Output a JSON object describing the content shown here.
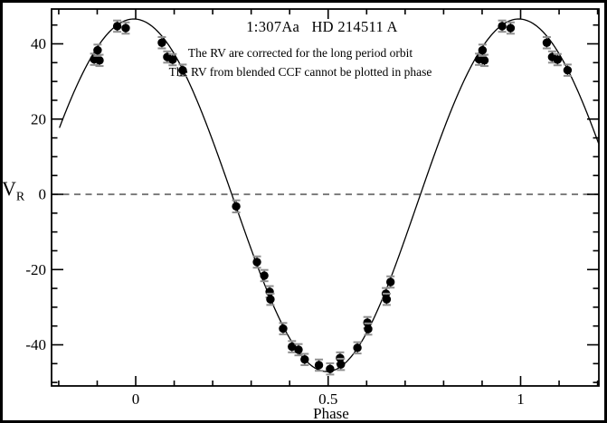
{
  "chart_data": {
    "type": "scatter",
    "title": "1:307Aa   HD 214511 A",
    "annotations": [
      "The RV are corrected for the long period orbit",
      "The RV from blended CCF cannot be plotted in phase"
    ],
    "xlabel": "Phase",
    "ylabel": "V_R",
    "ylabel_main": "V",
    "ylabel_sub": "R",
    "xlim": [
      -0.2186,
      1.2033
    ],
    "ylim": [
      -50.93,
      49.25
    ],
    "x_major_ticks": [
      0,
      0.5,
      1
    ],
    "x_major_tick_labels": [
      "0",
      "0.5",
      "1"
    ],
    "x_minor_tick_step": 0.1,
    "y_major_ticks": [
      -40,
      -20,
      0,
      20,
      40
    ],
    "y_major_tick_labels": [
      "-40",
      "-20",
      "0",
      "20",
      "40"
    ],
    "y_minor_tick_step": 5,
    "grid": "off",
    "legend": "none",
    "zero_line": {
      "value": 0,
      "style": "dashed"
    },
    "points_format": [
      "phase",
      "rv_km_s",
      "error"
    ],
    "points": [
      [
        -0.108,
        35.9,
        1.5
      ],
      [
        -0.094,
        35.6,
        1.5
      ],
      [
        -0.099,
        38.3,
        1.5
      ],
      [
        -0.048,
        44.7,
        1.5
      ],
      [
        -0.026,
        44.2,
        1.5
      ],
      [
        0.068,
        40.3,
        1.5
      ],
      [
        0.082,
        36.5,
        1.5
      ],
      [
        0.096,
        35.8,
        1.5
      ],
      [
        0.122,
        33.0,
        1.5
      ],
      [
        0.261,
        -3.2,
        1.6
      ],
      [
        0.315,
        -18.0,
        1.5
      ],
      [
        0.334,
        -21.6,
        1.5
      ],
      [
        0.348,
        -25.9,
        1.5
      ],
      [
        0.35,
        -27.9,
        1.5
      ],
      [
        0.383,
        -35.7,
        1.5
      ],
      [
        0.406,
        -40.5,
        1.5
      ],
      [
        0.423,
        -41.3,
        1.5
      ],
      [
        0.439,
        -43.9,
        1.5
      ],
      [
        0.476,
        -45.4,
        1.5
      ],
      [
        0.505,
        -46.4,
        1.5
      ],
      [
        0.531,
        -43.5,
        1.5
      ],
      [
        0.533,
        -45.2,
        1.5
      ],
      [
        0.576,
        -40.8,
        1.5
      ],
      [
        0.602,
        -34.1,
        1.5
      ],
      [
        0.604,
        -35.8,
        1.5
      ],
      [
        0.65,
        -26.4,
        1.5
      ],
      [
        0.652,
        -27.9,
        1.5
      ],
      [
        0.662,
        -23.3,
        1.5
      ]
    ],
    "phase_duplicate_offset": 1,
    "fitted_curve": {
      "description": "orbital RV fit: max ~ +46.6 km/s at phase ~ 0.0, min ~ -47.1 km/s at phase ~ 0.5, zero crossings ~ 0.25 and 0.74",
      "gamma": -0.25,
      "K": 46.85,
      "warp_c0": -0.00475,
      "warp_c1": 0.00575,
      "warp_c2": -0.00075,
      "warp_c4": 0.0005,
      "phase_range": [
        -0.2,
        1.2033
      ]
    },
    "colors": {
      "background": "#ffffff",
      "foreground": "#000000",
      "marker": "#000000",
      "curve": "#000000",
      "error_bar": "#333333",
      "error_cap": "#8f8f8f",
      "dashed_line": "#555555",
      "frame": "#000000"
    }
  }
}
